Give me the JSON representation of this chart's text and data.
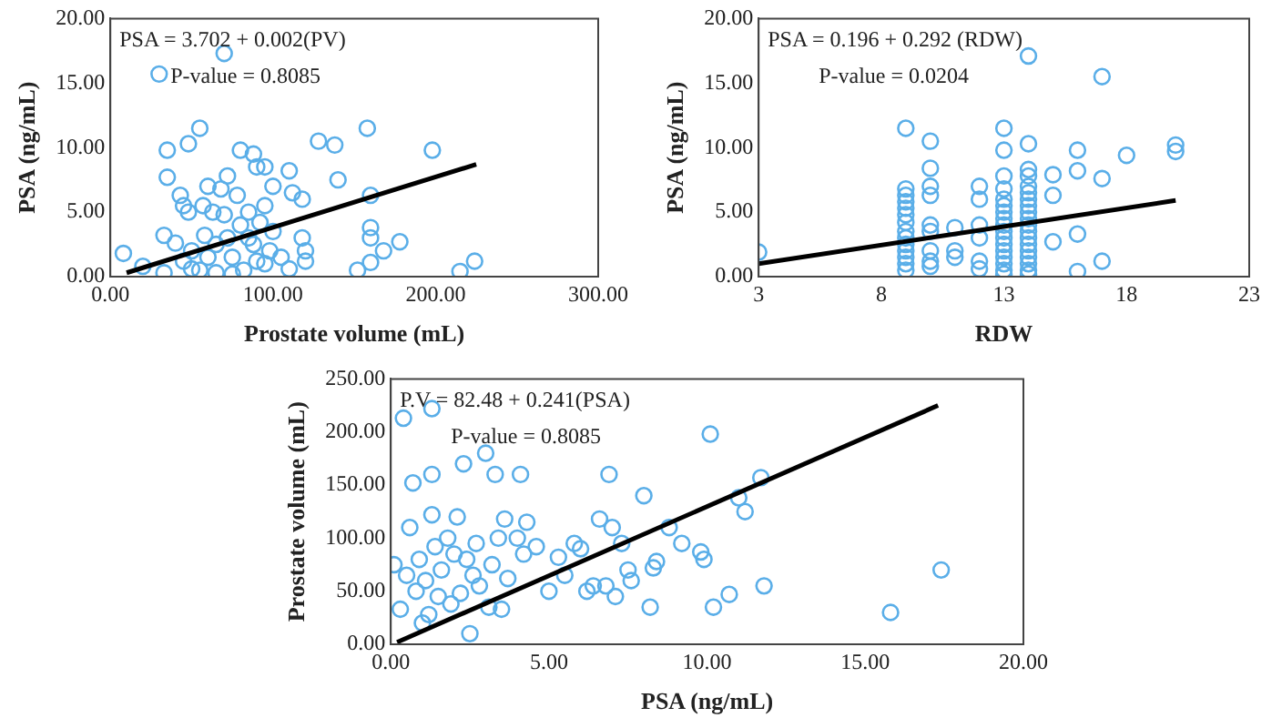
{
  "chart_data": [
    {
      "type": "scatter",
      "xlabel": "Prostate volume (mL)",
      "ylabel": "PSA (ng/mL)",
      "annotations": [
        "PSA = 3.702 + 0.002(PV)",
        "P-value = 0.8085"
      ],
      "xlim": [
        0,
        300
      ],
      "ylim": [
        0,
        20
      ],
      "xticks": [
        {
          "value": 0,
          "label": "0.00"
        },
        {
          "value": 100,
          "label": "100.00"
        },
        {
          "value": 200,
          "label": "200.00"
        },
        {
          "value": 300,
          "label": "300.00"
        }
      ],
      "yticks": [
        {
          "value": 0,
          "label": "0.00"
        },
        {
          "value": 5,
          "label": "5.00"
        },
        {
          "value": 10,
          "label": "10.00"
        },
        {
          "value": 15,
          "label": "15.00"
        },
        {
          "value": 20,
          "label": "20.00"
        }
      ],
      "grid": false,
      "legend": false,
      "marker": "circle",
      "series": [
        {
          "type": "scatter",
          "color": "#5aaee8",
          "x": [
            8,
            20,
            30,
            33,
            33,
            35,
            35,
            40,
            43,
            45,
            48,
            48,
            50,
            50,
            55,
            55,
            57,
            58,
            60,
            60,
            63,
            65,
            68,
            70,
            72,
            72,
            75,
            75,
            78,
            80,
            80,
            82,
            85,
            88,
            88,
            90,
            90,
            92,
            95,
            95,
            98,
            100,
            100,
            105,
            110,
            110,
            112,
            118,
            118,
            120,
            128,
            138,
            140,
            152,
            158,
            160,
            160,
            160,
            160,
            168,
            178,
            198,
            215,
            224,
            120,
            65,
            85,
            95,
            45,
            70
          ],
          "values": [
            1.8,
            0.8,
            15.7,
            3.2,
            0.3,
            9.8,
            7.7,
            2.6,
            6.3,
            5.5,
            10.3,
            5,
            2,
            0.6,
            11.5,
            0.5,
            5.5,
            3.2,
            7,
            1.5,
            5,
            0.3,
            6.8,
            17.3,
            7.8,
            3,
            1.5,
            0.2,
            6.3,
            9.8,
            4,
            0.5,
            5,
            9.5,
            2.5,
            8.5,
            1.2,
            4.2,
            8.5,
            5.5,
            2,
            7,
            3.5,
            1.5,
            8.2,
            0.6,
            6.5,
            6,
            3,
            1.2,
            10.5,
            10.2,
            7.5,
            0.5,
            11.5,
            6.3,
            3.8,
            3,
            1.1,
            2,
            2.7,
            9.8,
            0.4,
            1.2,
            2,
            2.5,
            3,
            1,
            1.2,
            4.8
          ]
        },
        {
          "type": "line",
          "color": "#000000",
          "marker": "none",
          "x": [
            10,
            225
          ],
          "values": [
            0.3,
            8.7
          ]
        }
      ]
    },
    {
      "type": "scatter",
      "xlabel": "RDW",
      "ylabel": "PSA (ng/mL)",
      "annotations": [
        "PSA = 0.196 + 0.292 (RDW)",
        "P-value = 0.0204"
      ],
      "xlim": [
        3,
        23
      ],
      "ylim": [
        0,
        20
      ],
      "xticks": [
        3,
        8,
        13,
        18,
        23
      ],
      "yticks": [
        {
          "value": 0,
          "label": "0.00"
        },
        {
          "value": 5,
          "label": "5.00"
        },
        {
          "value": 10,
          "label": "10.00"
        },
        {
          "value": 15,
          "label": "15.00"
        },
        {
          "value": 20,
          "label": "20.00"
        }
      ],
      "grid": false,
      "legend": false,
      "marker": "circle",
      "series": [
        {
          "type": "scatter",
          "color": "#5aaee8",
          "x": [
            3,
            9,
            9,
            9,
            9,
            9,
            9,
            9,
            9,
            9,
            9,
            9,
            9,
            9,
            9,
            10,
            10,
            10,
            10,
            10,
            10,
            10,
            10,
            10,
            11,
            11,
            11,
            12,
            12,
            12,
            12,
            12,
            12,
            13,
            13,
            13,
            13,
            13,
            13,
            13,
            13,
            13,
            13,
            13,
            13,
            13,
            13,
            13,
            13,
            13,
            14,
            14,
            14,
            14,
            14,
            14,
            14,
            14,
            14,
            14,
            14,
            14,
            14,
            14,
            14,
            14,
            14,
            14,
            14,
            15,
            15,
            15,
            16,
            16,
            16,
            16,
            17,
            17,
            17,
            18,
            20,
            20
          ],
          "values": [
            1.9,
            11.5,
            6.8,
            6.3,
            5.8,
            5.3,
            4.8,
            4.2,
            3.5,
            3,
            2.5,
            2,
            1.5,
            1,
            0.5,
            10.5,
            8.4,
            7,
            6.3,
            4,
            3.5,
            2,
            1.2,
            0.8,
            3.8,
            2,
            1.5,
            7,
            6,
            4,
            3,
            1.2,
            0.6,
            11.5,
            9.8,
            7.8,
            6.8,
            6,
            5.5,
            5,
            4.5,
            4,
            3.5,
            3,
            2.5,
            2,
            1.5,
            1,
            0.5,
            0.2,
            17.1,
            10.3,
            8.3,
            7.8,
            7,
            6.5,
            6,
            5.5,
            5,
            4.5,
            4,
            3.5,
            3,
            2.5,
            2,
            1.5,
            1,
            0.5,
            0.2,
            7.9,
            6.3,
            2.7,
            9.8,
            8.2,
            3.3,
            0.4,
            15.5,
            7.6,
            1.2,
            9.4,
            10.2,
            9.7
          ]
        },
        {
          "type": "line",
          "color": "#000000",
          "marker": "none",
          "x": [
            3,
            20
          ],
          "values": [
            1,
            5.9
          ]
        }
      ]
    },
    {
      "type": "scatter",
      "xlabel": "PSA (ng/mL)",
      "ylabel": "Prostate volume (mL)",
      "annotations": [
        "P.V = 82.48 + 0.241(PSA)",
        "P-value = 0.8085"
      ],
      "xlim": [
        0,
        20
      ],
      "ylim": [
        0,
        250
      ],
      "xticks": [
        {
          "value": 0,
          "label": "0.00"
        },
        {
          "value": 5,
          "label": "5.00"
        },
        {
          "value": 10,
          "label": "10.00"
        },
        {
          "value": 15,
          "label": "15.00"
        },
        {
          "value": 20,
          "label": "20.00"
        }
      ],
      "yticks": [
        {
          "value": 0,
          "label": "0.00"
        },
        {
          "value": 50,
          "label": "50.00"
        },
        {
          "value": 100,
          "label": "100.00"
        },
        {
          "value": 150,
          "label": "150.00"
        },
        {
          "value": 200,
          "label": "200.00"
        },
        {
          "value": 250,
          "label": "250.00"
        }
      ],
      "grid": false,
      "legend": false,
      "marker": "circle",
      "series": [
        {
          "type": "scatter",
          "color": "#5aaee8",
          "x": [
            0.1,
            0.3,
            0.4,
            0.5,
            0.6,
            0.7,
            0.8,
            0.9,
            1,
            1.1,
            1.2,
            1.3,
            1.3,
            1.3,
            1.4,
            1.5,
            1.6,
            1.8,
            1.9,
            2,
            2.1,
            2.2,
            2.3,
            2.4,
            2.5,
            2.6,
            2.7,
            2.8,
            3,
            3.1,
            3.2,
            3.3,
            3.4,
            3.5,
            3.6,
            3.7,
            4,
            4.1,
            4.2,
            4.3,
            4.6,
            5,
            5.3,
            5.5,
            5.8,
            6,
            6.2,
            6.4,
            6.6,
            6.8,
            6.9,
            7,
            7.1,
            7.3,
            7.5,
            7.6,
            8,
            8.2,
            8.3,
            8.4,
            8.8,
            9.2,
            9.8,
            9.9,
            10.1,
            10.2,
            10.7,
            11,
            11.2,
            11.7,
            11.8,
            15.8,
            17.4
          ],
          "values": [
            75,
            33,
            213,
            65,
            110,
            152,
            50,
            80,
            20,
            60,
            28,
            222,
            160,
            122,
            92,
            45,
            70,
            100,
            38,
            85,
            120,
            48,
            170,
            80,
            10,
            65,
            95,
            55,
            180,
            35,
            75,
            160,
            100,
            33,
            118,
            62,
            100,
            160,
            85,
            115,
            92,
            50,
            82,
            65,
            95,
            90,
            50,
            55,
            118,
            55,
            160,
            110,
            45,
            95,
            70,
            60,
            140,
            35,
            72,
            78,
            110,
            95,
            87,
            80,
            198,
            35,
            47,
            138,
            125,
            157,
            55,
            30,
            70
          ]
        },
        {
          "type": "line",
          "color": "#000000",
          "marker": "none",
          "x": [
            0.2,
            17.3
          ],
          "values": [
            2,
            225
          ]
        }
      ]
    }
  ]
}
